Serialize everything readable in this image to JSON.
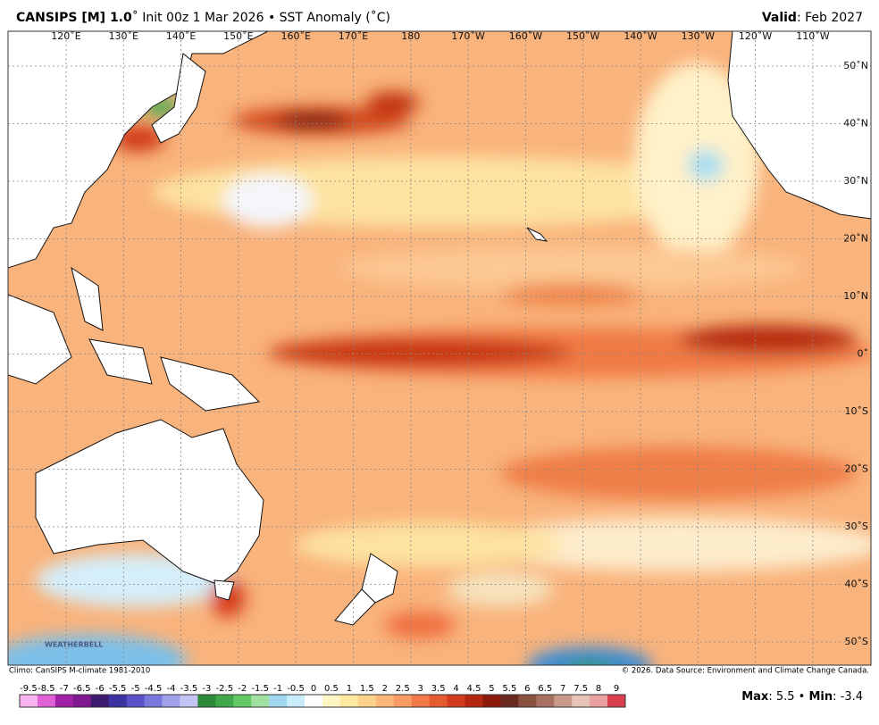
{
  "header": {
    "title_bold": "CANSIPS [M] 1.0",
    "title_rest": "˚ Init 00z 1 Mar 2026 • SST Anomaly (˚C)",
    "valid_label": "Valid",
    "valid_rest": ": Feb 2027"
  },
  "map": {
    "lon_labels": [
      "120˚E",
      "130˚E",
      "140˚E",
      "150˚E",
      "160˚E",
      "170˚E",
      "180",
      "170˚W",
      "160˚W",
      "150˚W",
      "140˚W",
      "130˚W",
      "120˚W",
      "110˚W"
    ],
    "lat_labels": [
      "50˚N",
      "40˚N",
      "30˚N",
      "20˚N",
      "10˚N",
      "0˚",
      "10˚S",
      "20˚S",
      "30˚S",
      "40˚S",
      "50˚S"
    ],
    "logo": "WEATHERBELL"
  },
  "footer": {
    "climo": "Climo: CanSIPS M-climate 1981-2010",
    "copyright": "© 2026. Data Source: Environment and Climate Change Canada."
  },
  "colorbar": {
    "ticks": [
      -9.5,
      -8.5,
      -7,
      -6.5,
      -6,
      -5.5,
      -5,
      -4.5,
      -4,
      -3.5,
      -3,
      -2.5,
      -2,
      -1.5,
      -1,
      -0.5,
      0,
      0.5,
      1,
      1.5,
      2,
      2.5,
      3,
      3.5,
      4,
      4.5,
      5,
      5.5,
      6,
      6.5,
      7,
      7.5,
      8,
      9
    ],
    "colors": [
      "#f9b4f0",
      "#e060d8",
      "#a020a8",
      "#801890",
      "#3c1a6e",
      "#3c32a0",
      "#5a50c8",
      "#7a78dc",
      "#a0a0ec",
      "#c4c4f4",
      "#2a8a3a",
      "#3ea84a",
      "#64c864",
      "#a0e0a0",
      "#a0d8f0",
      "#c8ecfa",
      "#ffffff",
      "#fff4c4",
      "#ffe8a0",
      "#fdd28a",
      "#fbb878",
      "#f89c64",
      "#f27a48",
      "#e65a30",
      "#d23c1c",
      "#b42610",
      "#8c1a0c",
      "#6a2a20",
      "#8a5040",
      "#a87060",
      "#c89888",
      "#e8c4b8",
      "#e8a0a0",
      "#d84050"
    ]
  },
  "stats": {
    "max_label": "Max",
    "max_value": 5.5,
    "bullet": " • ",
    "min_label": "Min",
    "min_value": -3.4,
    "sep": ": "
  }
}
